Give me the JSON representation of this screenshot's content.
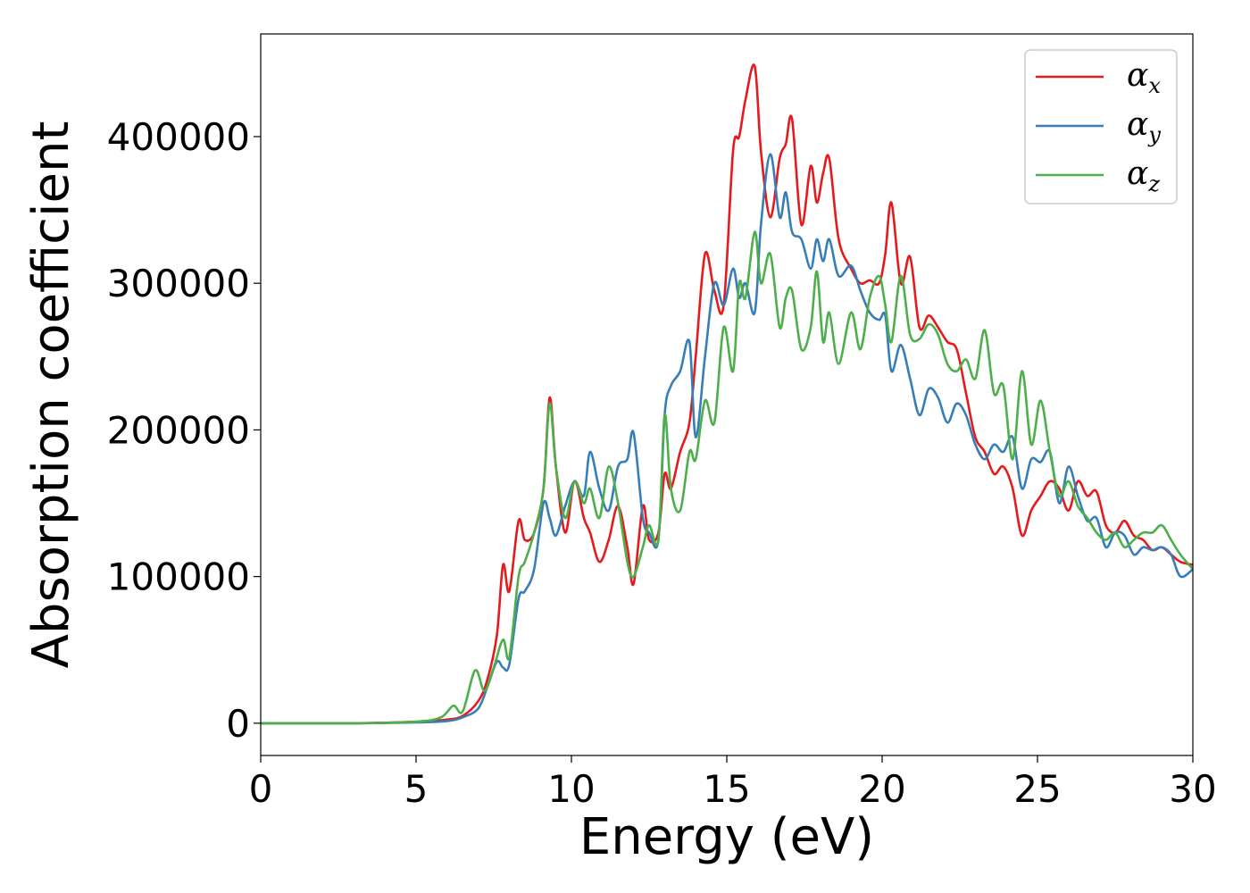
{
  "chart_data": {
    "type": "line",
    "title": "",
    "xlabel": "Energy (eV)",
    "ylabel": "Absorption coefficient",
    "xlim": [
      0,
      30
    ],
    "ylim": [
      -22000,
      470000
    ],
    "xticks": [
      0,
      5,
      10,
      15,
      20,
      25,
      30
    ],
    "xtick_labels": [
      "0",
      "5",
      "10",
      "15",
      "20",
      "25",
      "30"
    ],
    "yticks": [
      0,
      100000,
      200000,
      300000,
      400000
    ],
    "ytick_labels": [
      "0",
      "100000",
      "200000",
      "300000",
      "400000"
    ],
    "grid": false,
    "legend_position": "top-right",
    "series": [
      {
        "name": "α",
        "subscript": "x",
        "color": "#e41a1c",
        "x": [
          0,
          3,
          5,
          6,
          6.5,
          7,
          7.3,
          7.6,
          7.8,
          8.0,
          8.3,
          8.5,
          8.8,
          9.1,
          9.3,
          9.5,
          9.8,
          10.1,
          10.4,
          10.6,
          10.9,
          11.2,
          11.5,
          11.8,
          12.0,
          12.3,
          12.5,
          12.8,
          13.0,
          13.2,
          13.5,
          13.8,
          14.0,
          14.3,
          14.6,
          14.9,
          15.2,
          15.4,
          15.6,
          15.9,
          16.1,
          16.4,
          16.7,
          16.9,
          17.1,
          17.4,
          17.7,
          17.9,
          18.1,
          18.3,
          18.6,
          19.0,
          19.3,
          19.6,
          19.9,
          20.1,
          20.3,
          20.6,
          20.9,
          21.2,
          21.5,
          21.8,
          22.1,
          22.4,
          22.7,
          23.0,
          23.3,
          23.6,
          23.9,
          24.2,
          24.5,
          24.8,
          25.1,
          25.4,
          25.7,
          26.0,
          26.3,
          26.6,
          26.9,
          27.2,
          27.5,
          27.8,
          28.1,
          28.4,
          28.7,
          29.0,
          29.3,
          29.6,
          30
        ],
        "y": [
          0,
          0,
          1000,
          2500,
          5000,
          15000,
          30000,
          60000,
          108000,
          90000,
          138000,
          125000,
          130000,
          160000,
          222000,
          175000,
          130000,
          165000,
          140000,
          130000,
          110000,
          125000,
          148000,
          120000,
          95000,
          148000,
          125000,
          130000,
          170000,
          160000,
          185000,
          205000,
          250000,
          320000,
          295000,
          285000,
          390000,
          400000,
          425000,
          448000,
          390000,
          345000,
          385000,
          395000,
          412000,
          340000,
          380000,
          355000,
          375000,
          385000,
          330000,
          310000,
          300000,
          302000,
          300000,
          320000,
          355000,
          300000,
          318000,
          270000,
          278000,
          270000,
          260000,
          255000,
          225000,
          195000,
          185000,
          170000,
          175000,
          160000,
          128000,
          145000,
          155000,
          165000,
          160000,
          145000,
          165000,
          155000,
          158000,
          135000,
          130000,
          138000,
          128000,
          125000,
          118000,
          120000,
          115000,
          110000,
          108000
        ]
      },
      {
        "name": "α",
        "subscript": "y",
        "color": "#377eb8",
        "x": [
          0,
          3,
          5,
          6,
          6.5,
          7,
          7.3,
          7.6,
          7.8,
          8.0,
          8.3,
          8.5,
          8.8,
          9.1,
          9.3,
          9.5,
          9.8,
          10.1,
          10.4,
          10.6,
          10.9,
          11.2,
          11.5,
          11.8,
          12.0,
          12.3,
          12.5,
          12.8,
          13.0,
          13.2,
          13.5,
          13.8,
          14.0,
          14.3,
          14.6,
          14.9,
          15.2,
          15.4,
          15.6,
          15.9,
          16.1,
          16.4,
          16.7,
          16.9,
          17.1,
          17.4,
          17.7,
          17.9,
          18.1,
          18.3,
          18.6,
          19.0,
          19.3,
          19.6,
          19.9,
          20.1,
          20.3,
          20.6,
          20.9,
          21.2,
          21.5,
          21.8,
          22.1,
          22.4,
          22.7,
          23.0,
          23.3,
          23.6,
          23.9,
          24.2,
          24.5,
          24.8,
          25.1,
          25.4,
          25.7,
          26.0,
          26.3,
          26.6,
          26.9,
          27.2,
          27.5,
          27.8,
          28.1,
          28.4,
          28.7,
          29.0,
          29.3,
          29.6,
          30
        ],
        "y": [
          0,
          0,
          500,
          1500,
          4000,
          10000,
          25000,
          42000,
          38000,
          40000,
          85000,
          90000,
          105000,
          150000,
          140000,
          128000,
          148000,
          165000,
          155000,
          185000,
          160000,
          145000,
          175000,
          180000,
          198000,
          140000,
          130000,
          125000,
          210000,
          230000,
          240000,
          260000,
          195000,
          250000,
          300000,
          285000,
          310000,
          290000,
          300000,
          280000,
          340000,
          388000,
          345000,
          362000,
          335000,
          330000,
          310000,
          330000,
          315000,
          330000,
          305000,
          312000,
          295000,
          280000,
          275000,
          278000,
          240000,
          258000,
          235000,
          210000,
          228000,
          222000,
          205000,
          218000,
          210000,
          190000,
          180000,
          190000,
          185000,
          195000,
          160000,
          180000,
          178000,
          185000,
          150000,
          175000,
          155000,
          138000,
          140000,
          120000,
          130000,
          128000,
          115000,
          120000,
          118000,
          120000,
          115000,
          100000,
          105000
        ]
      },
      {
        "name": "α",
        "subscript": "z",
        "color": "#4daf4a",
        "x": [
          0,
          3,
          5,
          5.8,
          6.2,
          6.5,
          6.9,
          7.2,
          7.5,
          7.8,
          8.0,
          8.3,
          8.5,
          8.8,
          9.1,
          9.3,
          9.5,
          9.8,
          10.1,
          10.4,
          10.6,
          10.9,
          11.2,
          11.5,
          11.8,
          12.0,
          12.3,
          12.5,
          12.8,
          13.0,
          13.2,
          13.5,
          13.8,
          14.0,
          14.3,
          14.6,
          14.9,
          15.2,
          15.4,
          15.6,
          15.9,
          16.1,
          16.4,
          16.7,
          16.9,
          17.1,
          17.4,
          17.7,
          17.9,
          18.1,
          18.3,
          18.6,
          19.0,
          19.3,
          19.6,
          19.9,
          20.1,
          20.3,
          20.6,
          20.9,
          21.2,
          21.5,
          21.8,
          22.1,
          22.4,
          22.7,
          23.0,
          23.3,
          23.6,
          23.9,
          24.2,
          24.5,
          24.8,
          25.1,
          25.4,
          25.7,
          26.0,
          26.3,
          26.6,
          26.9,
          27.2,
          27.5,
          27.8,
          28.1,
          28.4,
          28.7,
          29.0,
          29.3,
          29.6,
          30
        ],
        "y": [
          0,
          0,
          1000,
          4000,
          12000,
          8000,
          36000,
          22000,
          38000,
          57000,
          45000,
          100000,
          110000,
          130000,
          160000,
          218000,
          175000,
          140000,
          165000,
          150000,
          160000,
          140000,
          175000,
          150000,
          110000,
          100000,
          120000,
          135000,
          125000,
          210000,
          160000,
          145000,
          185000,
          180000,
          220000,
          205000,
          270000,
          240000,
          300000,
          290000,
          335000,
          300000,
          320000,
          270000,
          290000,
          295000,
          255000,
          270000,
          308000,
          260000,
          280000,
          245000,
          280000,
          255000,
          290000,
          305000,
          285000,
          260000,
          305000,
          265000,
          262000,
          272000,
          265000,
          245000,
          240000,
          248000,
          235000,
          268000,
          225000,
          230000,
          180000,
          240000,
          190000,
          220000,
          185000,
          155000,
          165000,
          148000,
          140000,
          130000,
          125000,
          130000,
          120000,
          125000,
          130000,
          130000,
          135000,
          125000,
          115000,
          105000
        ]
      }
    ]
  }
}
